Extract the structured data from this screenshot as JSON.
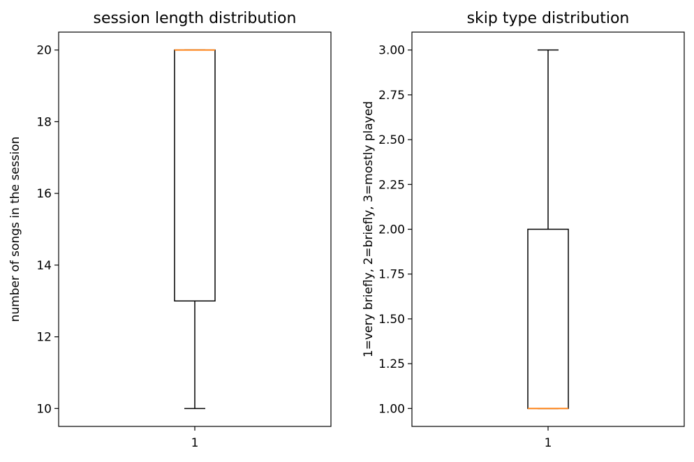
{
  "chart_data": [
    {
      "type": "box",
      "title": "session length distribution",
      "xlabel": "",
      "ylabel": "number of songs in the session",
      "categories": [
        "1"
      ],
      "ylim": [
        9.5,
        20.5
      ],
      "yticks": [
        10,
        12,
        14,
        16,
        18,
        20
      ],
      "ytick_labels": [
        "10",
        "12",
        "14",
        "16",
        "18",
        "20"
      ],
      "box": {
        "whisker_low": 10,
        "q1": 13,
        "median": 20,
        "q3": 20,
        "whisker_high": 20
      },
      "colors": {
        "box": "#000000",
        "median": "#ff7f0e"
      },
      "grid": false
    },
    {
      "type": "box",
      "title": "skip type distribution",
      "xlabel": "",
      "ylabel": "1=very briefly, 2=briefly, 3=mostly played",
      "categories": [
        "1"
      ],
      "ylim": [
        0.9,
        3.1
      ],
      "yticks": [
        1.0,
        1.25,
        1.5,
        1.75,
        2.0,
        2.25,
        2.5,
        2.75,
        3.0
      ],
      "ytick_labels": [
        "1.00",
        "1.25",
        "1.50",
        "1.75",
        "2.00",
        "2.25",
        "2.50",
        "2.75",
        "3.00"
      ],
      "box": {
        "whisker_low": 1,
        "q1": 1,
        "median": 1,
        "q3": 2,
        "whisker_high": 3
      },
      "colors": {
        "box": "#000000",
        "median": "#ff7f0e"
      },
      "grid": false
    }
  ]
}
